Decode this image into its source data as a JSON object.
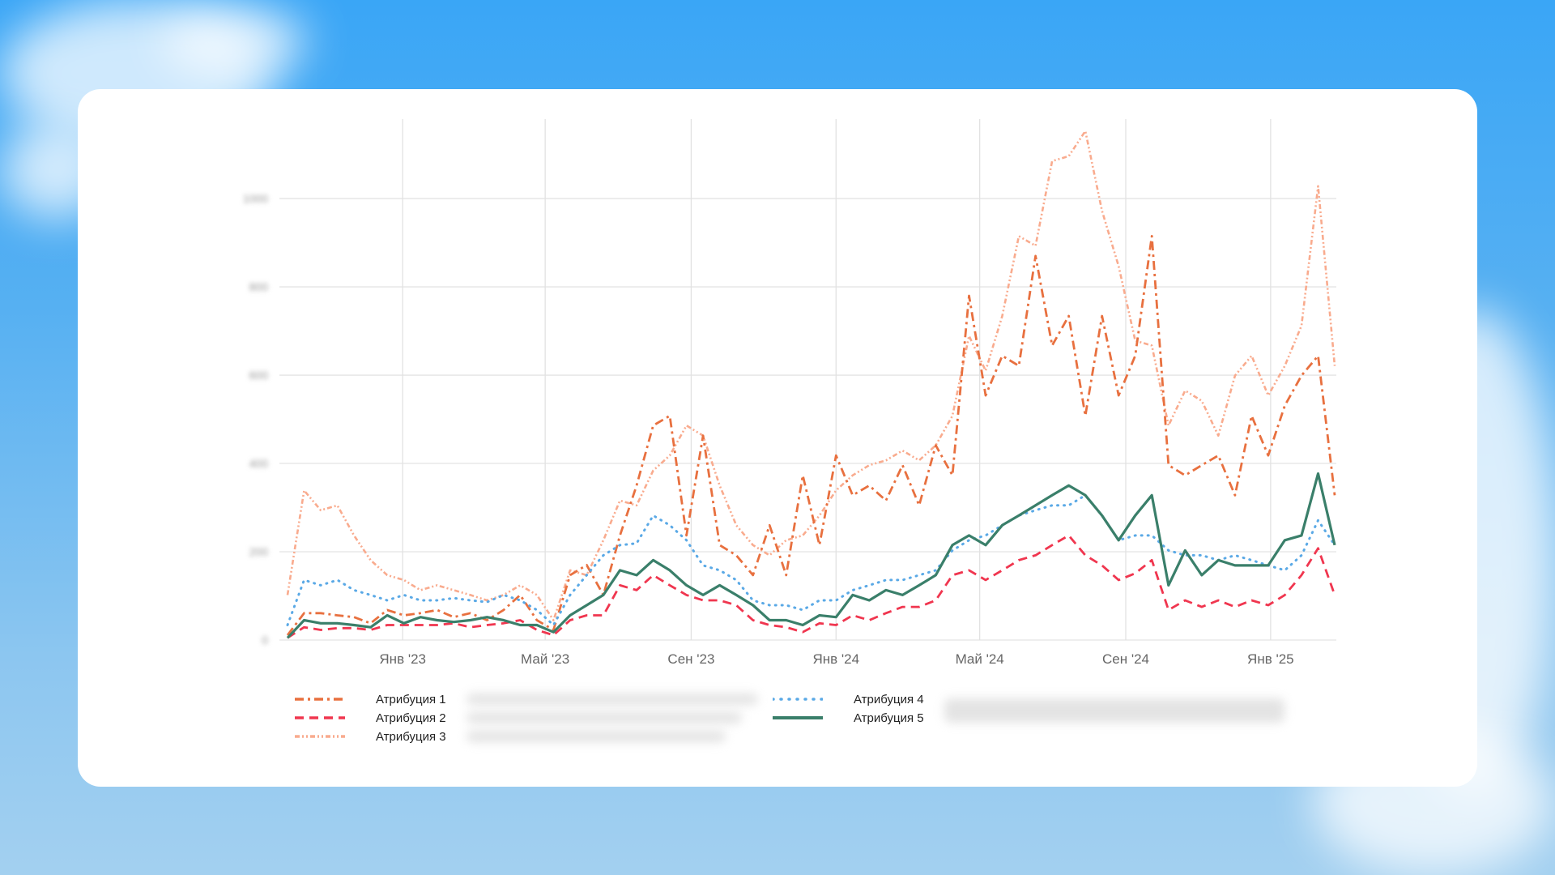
{
  "chart_data": {
    "type": "line",
    "title": "",
    "xlabel": "",
    "ylabel": "",
    "x_start": "2022-09-26",
    "x_step_days": 14,
    "ylim": [
      0,
      1180
    ],
    "grid": true,
    "legend_position": "bottom",
    "x_ticks": [
      {
        "date": "2023-01-01",
        "label": "Янв '23"
      },
      {
        "date": "2023-05-01",
        "label": "Май '23"
      },
      {
        "date": "2023-09-01",
        "label": "Сен '23"
      },
      {
        "date": "2024-01-01",
        "label": "Янв '24"
      },
      {
        "date": "2024-05-01",
        "label": "Май '24"
      },
      {
        "date": "2024-09-01",
        "label": "Сен '24"
      },
      {
        "date": "2025-01-01",
        "label": "Янв '25"
      }
    ],
    "y_ticks": [
      {
        "value": 0,
        "label": "0"
      },
      {
        "value": 200,
        "label": "200"
      },
      {
        "value": 400,
        "label": "400"
      },
      {
        "value": 600,
        "label": "600"
      },
      {
        "value": 800,
        "label": "800"
      },
      {
        "value": 1000,
        "label": "1000"
      }
    ],
    "series": [
      {
        "name": "Атрибуция 1",
        "color": "#e8703f",
        "dash": "dashdot",
        "values": [
          11,
          61,
          61,
          56,
          52,
          38,
          68,
          56,
          61,
          68,
          52,
          61,
          45,
          68,
          102,
          45,
          23,
          147,
          170,
          102,
          237,
          350,
          486,
          508,
          237,
          463,
          215,
          192,
          147,
          260,
          147,
          373,
          215,
          418,
          328,
          350,
          316,
          396,
          305,
          441,
          373,
          780,
          554,
          644,
          621,
          870,
          667,
          734,
          508,
          734,
          554,
          644,
          915,
          396,
          373,
          396,
          418,
          328,
          508,
          418,
          531,
          599,
          644,
          328
        ]
      },
      {
        "name": "Атрибуция 2",
        "color": "#f0364f",
        "dash": "dash",
        "values": [
          5,
          29,
          23,
          27,
          27,
          23,
          34,
          34,
          34,
          34,
          38,
          29,
          34,
          38,
          45,
          23,
          11,
          45,
          56,
          56,
          124,
          113,
          147,
          124,
          102,
          90,
          90,
          79,
          45,
          34,
          29,
          18,
          38,
          34,
          56,
          45,
          61,
          75,
          75,
          90,
          147,
          158,
          136,
          158,
          181,
          192,
          215,
          237,
          192,
          169,
          136,
          151,
          181,
          68,
          90,
          75,
          90,
          75,
          90,
          79,
          102,
          147,
          208,
          102
        ]
      },
      {
        "name": "Атрибуция 3",
        "color": "#f9ab8e",
        "dash": "dashdotdot",
        "values": [
          102,
          339,
          294,
          305,
          237,
          181,
          147,
          136,
          113,
          124,
          113,
          102,
          90,
          102,
          124,
          102,
          45,
          158,
          147,
          226,
          316,
          305,
          384,
          418,
          486,
          463,
          350,
          260,
          215,
          192,
          226,
          237,
          282,
          339,
          373,
          396,
          407,
          429,
          407,
          441,
          508,
          689,
          610,
          734,
          915,
          893,
          1085,
          1096,
          1153,
          972,
          847,
          678,
          667,
          486,
          565,
          542,
          463,
          599,
          644,
          554,
          621,
          712,
          1028,
          621
        ]
      },
      {
        "name": "Атрибуция 4",
        "color": "#5aa9e6",
        "dash": "dot",
        "values": [
          34,
          136,
          124,
          136,
          113,
          102,
          90,
          102,
          90,
          90,
          95,
          90,
          86,
          102,
          90,
          68,
          34,
          102,
          147,
          192,
          215,
          219,
          282,
          260,
          226,
          169,
          158,
          136,
          90,
          79,
          79,
          68,
          90,
          90,
          113,
          124,
          136,
          136,
          147,
          158,
          203,
          226,
          237,
          260,
          282,
          294,
          305,
          305,
          328,
          282,
          226,
          237,
          237,
          203,
          192,
          192,
          181,
          192,
          181,
          169,
          158,
          192,
          271,
          215
        ]
      },
      {
        "name": "Атрибуция 5",
        "color": "#3a7f6a",
        "dash": "solid",
        "values": [
          5,
          45,
          38,
          38,
          34,
          29,
          56,
          38,
          52,
          45,
          41,
          45,
          52,
          45,
          34,
          34,
          18,
          56,
          79,
          102,
          158,
          147,
          181,
          158,
          124,
          102,
          124,
          102,
          79,
          45,
          45,
          34,
          56,
          52,
          102,
          90,
          113,
          102,
          124,
          147,
          215,
          237,
          215,
          260,
          282,
          305,
          328,
          350,
          328,
          282,
          226,
          282,
          328,
          124,
          203,
          147,
          181,
          169,
          169,
          169,
          226,
          237,
          377,
          215
        ]
      }
    ]
  }
}
